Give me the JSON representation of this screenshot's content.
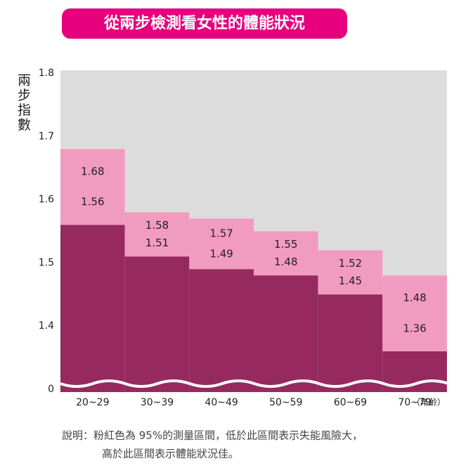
{
  "chart_data": {
    "type": "range-step",
    "title": "從兩步檢測看女性的體能狀況",
    "y_label": "兩步指數",
    "x_unit": "（年齡）",
    "categories": [
      "20~29",
      "30~39",
      "40~49",
      "50~59",
      "60~69",
      "70~79"
    ],
    "low_values": [
      1.56,
      1.51,
      1.49,
      1.48,
      1.45,
      1.36
    ],
    "high_values": [
      1.68,
      1.58,
      1.57,
      1.55,
      1.52,
      1.48
    ],
    "low_color": "#962a5f",
    "range_color": "#f29bc1",
    "background_color": "#dcdcdc",
    "ylim": [
      0,
      1.8
    ],
    "y_break": [
      0,
      1.3
    ],
    "yticks": [
      0,
      1.4,
      1.5,
      1.6,
      1.7,
      1.8
    ],
    "notes": [
      "說明：粉紅色為 95%的測量區間，低於此區間表示失能風險大，",
      "高於此區間表示體能狀況佳。"
    ]
  }
}
